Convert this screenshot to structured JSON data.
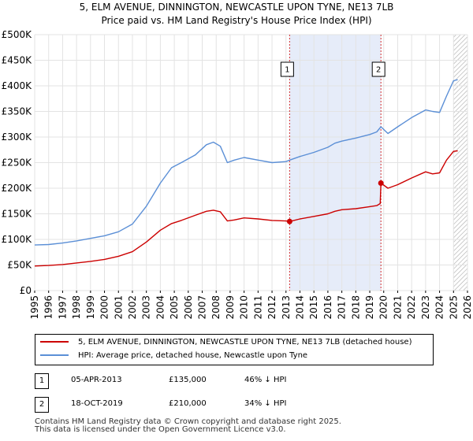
{
  "chart_data": {
    "type": "line",
    "title": "5, ELM AVENUE, DINNINGTON, NEWCASTLE UPON TYNE, NE13 7LB",
    "subtitle": "Price paid vs. HM Land Registry's House Price Index (HPI)",
    "xlim": [
      1995,
      2026
    ],
    "ylim": [
      0,
      500000
    ],
    "x_ticks": [
      1995,
      1996,
      1997,
      1998,
      1999,
      2000,
      2001,
      2002,
      2003,
      2004,
      2005,
      2006,
      2007,
      2008,
      2009,
      2010,
      2011,
      2012,
      2013,
      2014,
      2015,
      2016,
      2017,
      2018,
      2019,
      2020,
      2021,
      2022,
      2023,
      2024,
      2025,
      2026
    ],
    "y_ticks": [
      {
        "value": 0,
        "label": "£0"
      },
      {
        "value": 50000,
        "label": "£50K"
      },
      {
        "value": 100000,
        "label": "£100K"
      },
      {
        "value": 150000,
        "label": "£150K"
      },
      {
        "value": 200000,
        "label": "£200K"
      },
      {
        "value": 250000,
        "label": "£250K"
      },
      {
        "value": 300000,
        "label": "£300K"
      },
      {
        "value": 350000,
        "label": "£350K"
      },
      {
        "value": 400000,
        "label": "£400K"
      },
      {
        "value": 450000,
        "label": "£450K"
      },
      {
        "value": 500000,
        "label": "£500K"
      }
    ],
    "grid": true,
    "shaded_region": {
      "from": 2013.26,
      "to": 2019.8,
      "color": "#dde6f7"
    },
    "hatched_region": {
      "from": 2025.0,
      "to": 2026.0
    },
    "series": [
      {
        "name": "HPI: Average price, detached house, Newcastle upon Tyne",
        "color": "#5b8fd6",
        "x": [
          1995,
          1996,
          1997,
          1998,
          1999,
          2000,
          2001,
          2002,
          2003,
          2004,
          2004.8,
          2005.5,
          2006.5,
          2007.3,
          2007.8,
          2008.3,
          2008.8,
          2009.3,
          2010,
          2011,
          2012,
          2013,
          2013.26,
          2014,
          2015,
          2016,
          2016.5,
          2017,
          2018,
          2019,
          2019.5,
          2019.8,
          2020.3,
          2021,
          2022,
          2023,
          2023.5,
          2024,
          2024.5,
          2025,
          2025.3
        ],
        "y": [
          89000,
          90000,
          93000,
          97000,
          102000,
          107000,
          115000,
          130000,
          165000,
          210000,
          240000,
          250000,
          265000,
          285000,
          290000,
          282000,
          250000,
          255000,
          260000,
          255000,
          250000,
          252000,
          255000,
          262000,
          270000,
          280000,
          288000,
          292000,
          298000,
          305000,
          310000,
          320000,
          307000,
          320000,
          338000,
          353000,
          350000,
          348000,
          380000,
          410000,
          412000
        ]
      },
      {
        "name": "5, ELM AVENUE, DINNINGTON, NEWCASTLE UPON TYNE, NE13 7LB (detached house)",
        "color": "#cc0000",
        "x": [
          1995,
          1996,
          1997,
          1998,
          1999,
          2000,
          2001,
          2002,
          2003,
          2004,
          2004.8,
          2005.5,
          2006.5,
          2007.3,
          2007.8,
          2008.3,
          2008.8,
          2009.3,
          2010,
          2011,
          2012,
          2013,
          2013.26,
          2014,
          2015,
          2016,
          2016.5,
          2017,
          2018,
          2019,
          2019.5,
          2019.75,
          2019.8,
          2020.3,
          2021,
          2022,
          2023,
          2023.5,
          2024,
          2024.5,
          2025,
          2025.3
        ],
        "y": [
          48000,
          49000,
          51000,
          54000,
          57000,
          61000,
          67000,
          76000,
          95000,
          118000,
          131000,
          137000,
          147000,
          155000,
          157000,
          154000,
          136000,
          138000,
          142000,
          140000,
          137000,
          136000,
          135000,
          140000,
          145000,
          150000,
          155000,
          158000,
          160000,
          164000,
          166000,
          170000,
          210000,
          200000,
          207000,
          220000,
          232000,
          228000,
          230000,
          255000,
          272000,
          273000
        ]
      }
    ],
    "sales": [
      {
        "id": "1",
        "x": 2013.26,
        "price": 135000,
        "date": "05-APR-2013",
        "price_label": "£135,000",
        "hpi": "46% ↓ HPI"
      },
      {
        "id": "2",
        "x": 2019.8,
        "price": 210000,
        "date": "18-OCT-2019",
        "price_label": "£210,000",
        "hpi": "34% ↓ HPI"
      }
    ]
  },
  "legend": {
    "property_label": "5, ELM AVENUE, DINNINGTON, NEWCASTLE UPON TYNE, NE13 7LB (detached house)",
    "hpi_label": "HPI: Average price, detached house, Newcastle upon Tyne",
    "property_color": "#cc0000",
    "hpi_color": "#5b8fd6"
  },
  "footer": {
    "line1": "Contains HM Land Registry data © Crown copyright and database right 2025.",
    "line2": "This data is licensed under the Open Government Licence v3.0."
  }
}
